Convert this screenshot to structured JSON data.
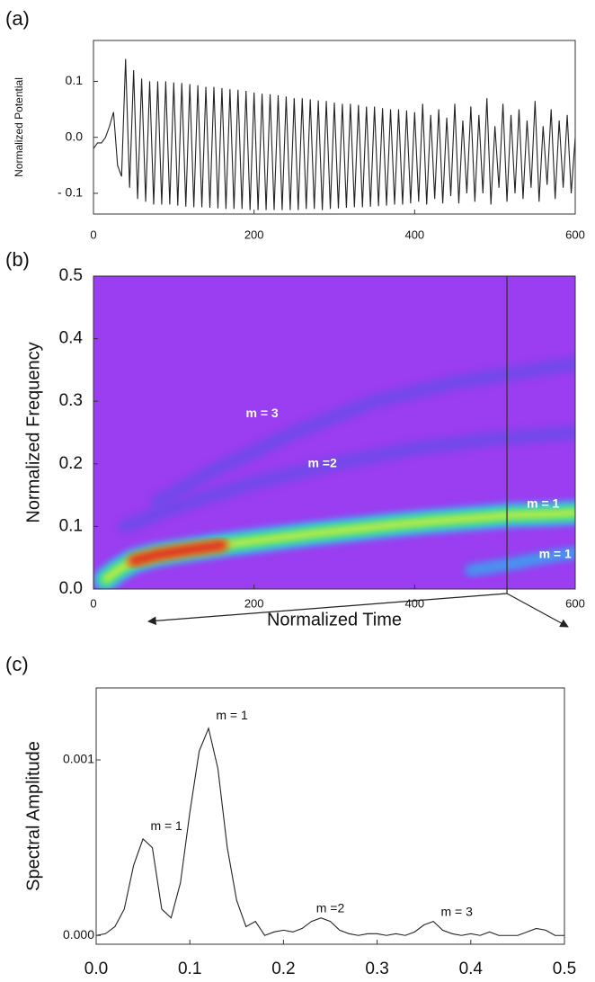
{
  "chart_data": [
    {
      "type": "line",
      "label": "(a)",
      "y_label": "Normalized Potential",
      "color": "#222222",
      "xlim": [
        0,
        600
      ],
      "xticks": [
        0,
        200,
        400,
        600
      ],
      "ylim": [
        -0.137,
        0.173
      ],
      "yticks": [
        {
          "value": -0.1,
          "label": "- 0.1"
        },
        {
          "value": 0,
          "label": "0.0"
        },
        0.1
      ],
      "x": [
        0,
        5,
        10,
        15,
        20,
        25,
        30,
        35,
        40,
        45,
        50,
        55,
        60,
        65,
        70,
        75,
        80,
        85,
        90,
        95,
        100,
        105,
        110,
        115,
        120,
        125,
        130,
        135,
        140,
        145,
        150,
        155,
        160,
        165,
        170,
        175,
        180,
        185,
        190,
        195,
        200,
        205,
        210,
        215,
        220,
        225,
        230,
        235,
        240,
        245,
        250,
        255,
        260,
        265,
        270,
        275,
        280,
        285,
        290,
        295,
        300,
        305,
        310,
        315,
        320,
        325,
        330,
        335,
        340,
        345,
        350,
        355,
        360,
        365,
        370,
        375,
        380,
        385,
        390,
        395,
        400,
        405,
        410,
        415,
        420,
        425,
        430,
        435,
        440,
        445,
        450,
        455,
        460,
        465,
        470,
        475,
        480,
        485,
        490,
        495,
        500,
        505,
        510,
        515,
        520,
        525,
        530,
        535,
        540,
        545,
        550,
        555,
        560,
        565,
        570,
        575,
        580,
        585,
        590,
        595,
        600
      ],
      "values": [
        -0.02,
        -0.01,
        -0.01,
        0.0,
        0.02,
        0.045,
        -0.05,
        -0.07,
        0.14,
        -0.09,
        0.12,
        -0.11,
        0.105,
        -0.115,
        0.1,
        -0.12,
        0.1,
        -0.12,
        0.1,
        -0.12,
        0.098,
        -0.122,
        0.097,
        -0.124,
        0.095,
        -0.125,
        0.093,
        -0.125,
        0.09,
        -0.126,
        0.09,
        -0.127,
        0.088,
        -0.128,
        0.086,
        -0.128,
        0.085,
        -0.128,
        0.083,
        -0.13,
        0.08,
        -0.13,
        0.078,
        -0.13,
        0.077,
        -0.13,
        0.075,
        -0.13,
        0.073,
        -0.13,
        0.07,
        -0.13,
        0.07,
        -0.128,
        0.068,
        -0.128,
        0.066,
        -0.13,
        0.065,
        -0.128,
        0.062,
        -0.127,
        0.06,
        -0.126,
        0.06,
        -0.125,
        0.058,
        -0.125,
        0.055,
        -0.124,
        0.055,
        -0.123,
        0.052,
        -0.122,
        0.05,
        -0.12,
        0.05,
        -0.12,
        0.048,
        -0.118,
        0.045,
        -0.115,
        0.06,
        -0.12,
        0.04,
        -0.11,
        0.05,
        -0.118,
        0.035,
        -0.105,
        0.06,
        -0.118,
        0.03,
        -0.1,
        0.055,
        -0.115,
        0.04,
        -0.1,
        0.07,
        -0.12,
        0.02,
        -0.09,
        0.06,
        -0.115,
        0.04,
        -0.1,
        0.05,
        -0.11,
        0.03,
        -0.09,
        0.065,
        -0.115,
        0.02,
        -0.085,
        0.05,
        -0.11,
        0.03,
        -0.09,
        0.04,
        -0.1,
        0.0
      ]
    },
    {
      "type": "spectrogram",
      "label": "(b)",
      "x_label": "Normalized Time",
      "y_label": "Normalized Frequency",
      "background": "#9b3df0",
      "xlim": [
        0,
        600
      ],
      "xticks": [
        0,
        200,
        400,
        600
      ],
      "ylim": [
        0,
        0.5
      ],
      "yticks": [
        {
          "value": 0,
          "label": "0.0"
        },
        0.1,
        0.2,
        0.3,
        0.4,
        0.5
      ],
      "cursor_x": 515,
      "series": [
        {
          "colors": [
            "#6a4ce8"
          ],
          "x": [
            40,
            100,
            200,
            300,
            400,
            500,
            600
          ],
          "values": [
            0.1,
            0.13,
            0.17,
            0.2,
            0.225,
            0.24,
            0.25
          ]
        },
        {
          "colors": [
            "#6a4ce8"
          ],
          "x": [
            80,
            150,
            250,
            350,
            450,
            550,
            600
          ],
          "values": [
            0.14,
            0.19,
            0.25,
            0.3,
            0.33,
            0.35,
            0.36
          ]
        },
        {
          "colors": [
            "#5a7cf0",
            "#3fa0f0"
          ],
          "x": [
            470,
            520,
            560,
            600
          ],
          "values": [
            0.03,
            0.04,
            0.05,
            0.058
          ]
        },
        {
          "colors": [
            "#2ec8f0",
            "#34e07a",
            "#e8f030"
          ],
          "x": [
            15,
            30,
            50,
            80,
            120,
            170,
            220,
            270,
            320,
            370,
            420,
            470,
            520,
            570,
            600
          ],
          "values": [
            0.015,
            0.03,
            0.045,
            0.055,
            0.063,
            0.072,
            0.08,
            0.088,
            0.095,
            0.102,
            0.108,
            0.113,
            0.118,
            0.12,
            0.122
          ]
        },
        {
          "colors": [
            "#f07020",
            "#d82020"
          ],
          "x": [
            50,
            80,
            120,
            160
          ],
          "values": [
            0.045,
            0.055,
            0.063,
            0.07
          ]
        }
      ],
      "annotations": [
        {
          "text": "m = 3",
          "x": 210,
          "y": 0.28
        },
        {
          "text": "m =2",
          "x": 285,
          "y": 0.2
        },
        {
          "text": "m = 1",
          "x": 560,
          "y": 0.135
        },
        {
          "text": "m = 1",
          "x": 575,
          "y": 0.055
        }
      ]
    },
    {
      "type": "line",
      "label": "(c)",
      "y_label": "Spectral Amplitude",
      "color": "#222222",
      "xlim": [
        0,
        0.5
      ],
      "xticks": [
        {
          "value": 0,
          "label": "0.0"
        },
        0.1,
        0.2,
        0.3,
        0.4,
        0.5
      ],
      "ylim": [
        -5e-05,
        0.00141
      ],
      "yticks": [
        {
          "value": 0,
          "label": "0.000"
        },
        0.001
      ],
      "x": [
        0,
        0.01,
        0.02,
        0.03,
        0.04,
        0.05,
        0.06,
        0.07,
        0.08,
        0.09,
        0.1,
        0.11,
        0.12,
        0.13,
        0.14,
        0.15,
        0.16,
        0.17,
        0.18,
        0.19,
        0.2,
        0.21,
        0.22,
        0.23,
        0.24,
        0.25,
        0.26,
        0.27,
        0.28,
        0.29,
        0.3,
        0.31,
        0.32,
        0.33,
        0.34,
        0.35,
        0.36,
        0.37,
        0.38,
        0.39,
        0.4,
        0.41,
        0.42,
        0.43,
        0.44,
        0.45,
        0.46,
        0.47,
        0.48,
        0.49,
        0.5
      ],
      "values": [
        0,
        1e-05,
        5e-05,
        0.00015,
        0.0004,
        0.00055,
        0.0005,
        0.00015,
        0.0001,
        0.0003,
        0.0007,
        0.00105,
        0.00118,
        0.00095,
        0.0005,
        0.0002,
        5e-05,
        8e-05,
        0,
        2e-05,
        3e-05,
        2e-05,
        4e-05,
        8e-05,
        0.0001,
        8e-05,
        3e-05,
        1e-05,
        0,
        1e-05,
        1e-05,
        0,
        1e-05,
        0,
        2e-05,
        6e-05,
        8e-05,
        3e-05,
        1e-05,
        0,
        1e-05,
        0,
        2e-05,
        0,
        0,
        0,
        2e-05,
        4e-05,
        3e-05,
        0,
        0
      ],
      "annotations": [
        {
          "text": "m = 1",
          "x": 0.145,
          "y": 0.00125
        },
        {
          "text": "m = 1",
          "x": 0.075,
          "y": 0.00062
        },
        {
          "text": "m =2",
          "x": 0.25,
          "y": 0.00015
        },
        {
          "text": "m = 3",
          "x": 0.385,
          "y": 0.00013
        }
      ]
    }
  ]
}
